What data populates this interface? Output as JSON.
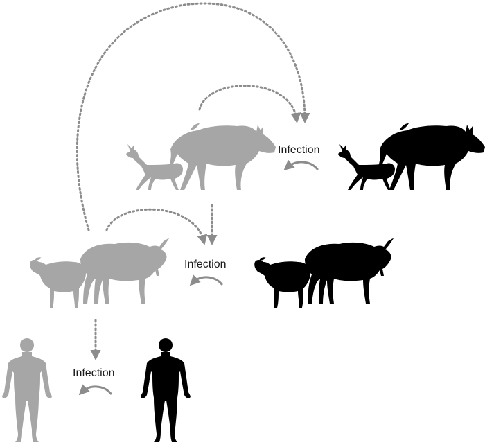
{
  "colors": {
    "uninfected": "#a6a6a6",
    "infected": "#000000",
    "arrow": "#8c8c8c",
    "label": "#1a1a1a",
    "background": "#ffffff"
  },
  "labels": {
    "wildlife_infection": "Infection",
    "livestock_infection": "Infection",
    "human_infection": "Infection"
  },
  "rows": [
    {
      "group": "wildlife",
      "animals": [
        "gazelle-icon",
        "wildebeest-icon"
      ]
    },
    {
      "group": "livestock",
      "animals": [
        "sheep-icon",
        "cattle-icon"
      ]
    },
    {
      "group": "humans",
      "animals": [
        "human-icon"
      ]
    }
  ]
}
